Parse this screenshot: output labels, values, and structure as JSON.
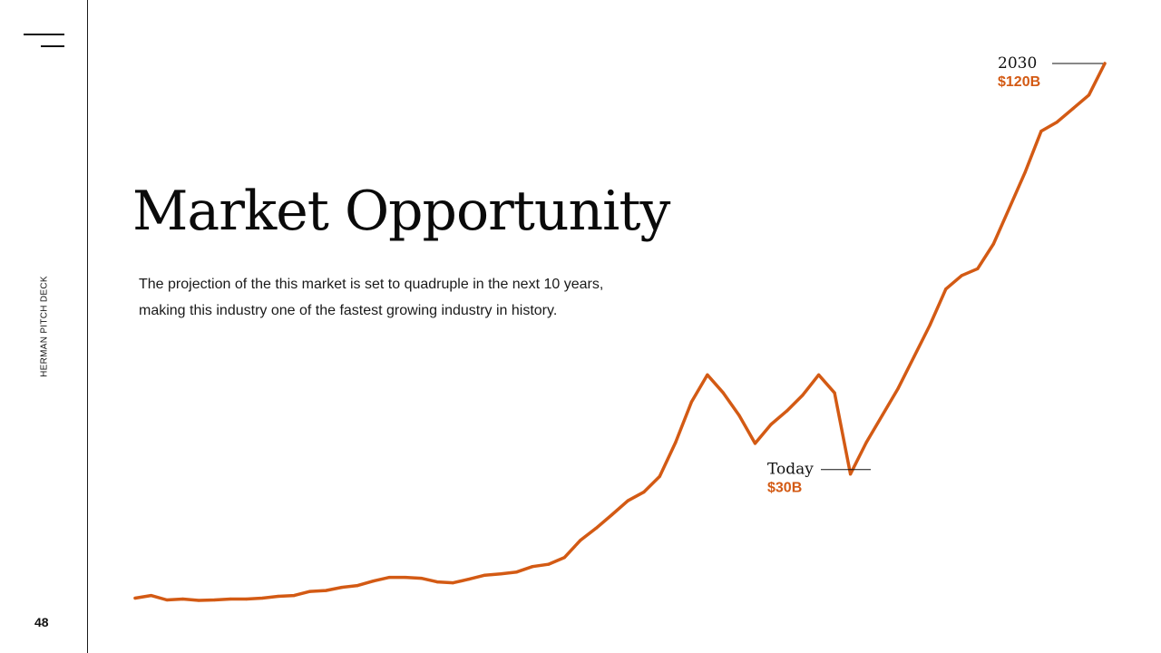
{
  "slide": {
    "title": "Market Opportunity",
    "description": "The projection of the this market is set to quadruple in the next 10 years, making this industry one of the fastest growing industry in history.",
    "side_label": "HERMAN PITCH DECK",
    "page_number": "48",
    "menu_icon": "hamburger-menu-icon"
  },
  "colors": {
    "accent": "#D35A14",
    "text": "#111111",
    "background": "#FFFFFF"
  },
  "chart_data": {
    "type": "line",
    "title": "",
    "xlabel": "",
    "ylabel": "",
    "grid": false,
    "axes_visible": false,
    "ylim": [
      0,
      122
    ],
    "annotations": [
      {
        "label": "Today",
        "value_label": "$30B",
        "value": 30
      },
      {
        "label": "2030",
        "value_label": "$120B",
        "value": 120
      }
    ],
    "series": [
      {
        "color": "#D35A14",
        "values": [
          1.5,
          2.1,
          1.1,
          1.3,
          1.0,
          1.1,
          1.3,
          1.3,
          1.5,
          1.9,
          2.1,
          3.0,
          3.2,
          3.9,
          4.3,
          5.3,
          6.1,
          6.1,
          5.9,
          5.1,
          4.9,
          5.7,
          6.6,
          6.9,
          7.3,
          8.5,
          9.0,
          10.5,
          14.3,
          17.0,
          20.0,
          23.1,
          25.0,
          28.5,
          36.0,
          45.0,
          51.0,
          47.0,
          42.0,
          35.8,
          40.0,
          43.0,
          46.5,
          51.0,
          47.0,
          29.0,
          36.0,
          42.0,
          48.0,
          55.0,
          62.0,
          70.0,
          73.0,
          74.5,
          80.0,
          88.0,
          96.0,
          105.0,
          107.0,
          110.0,
          113.0,
          120.0
        ]
      }
    ]
  }
}
